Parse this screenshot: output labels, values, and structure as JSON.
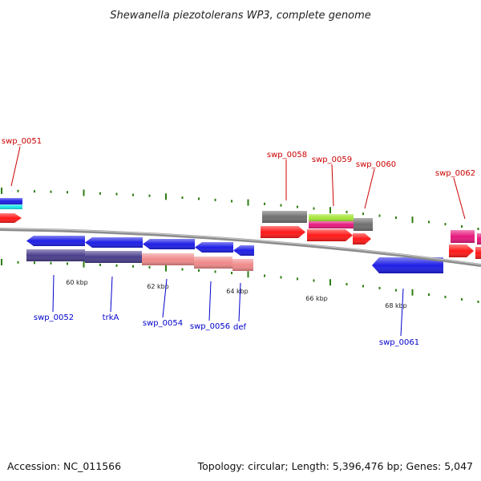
{
  "title": "Shewanella piezotolerans WP3, complete genome",
  "footer": {
    "accession": "Accession: NC_011566",
    "summary": "Topology: circular; Length: 5,396,476 bp; Genes: 5,047"
  },
  "colors": {
    "backbone": "#8c8c8c",
    "tick": "#2e7d12",
    "forward_label": "#cc0000",
    "reverse_label": "#0000cc",
    "blue": "#1f1fe6",
    "navy": "#4a3f8c",
    "salmon": "#f08a8a",
    "red": "#ff1a1a",
    "gray": "#707070",
    "green": "#a6e639",
    "magenta": "#e6197d",
    "cyan": "#19e6e6"
  },
  "scale_labels": [
    "60 kbp",
    "62 kbp",
    "64 kbp",
    "66 kbp",
    "68 kbp"
  ],
  "forward_labels": [
    "swp_0051",
    "swp_0058",
    "swp_0059",
    "swp_0060",
    "swp_0062"
  ],
  "reverse_labels": [
    "swp_0052",
    "trkA",
    "swp_0054",
    "swp_0056",
    "def",
    "swp_0061"
  ]
}
